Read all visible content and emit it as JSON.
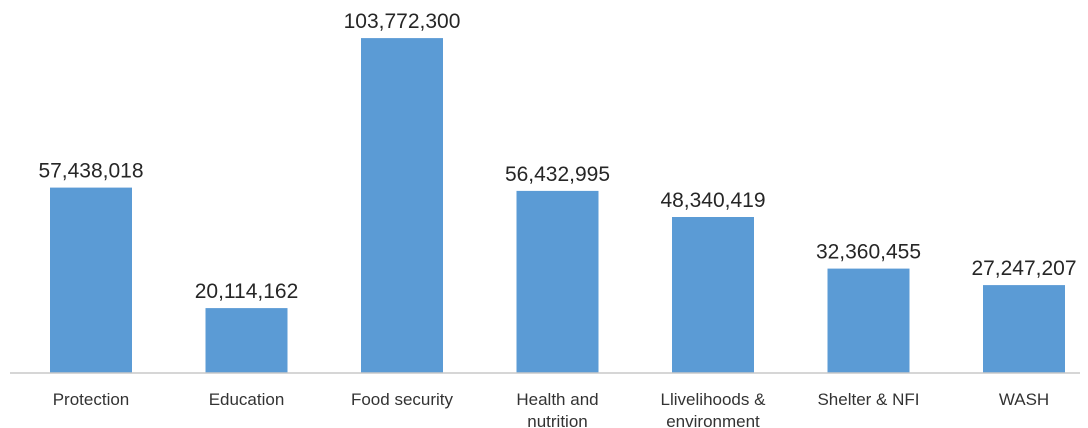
{
  "chart_data": {
    "type": "bar",
    "categories": [
      [
        "Protection"
      ],
      [
        "Education"
      ],
      [
        "Food security"
      ],
      [
        "Health and",
        "nutrition"
      ],
      [
        "Llivelihoods &",
        "environment"
      ],
      [
        "Shelter & NFI"
      ],
      [
        "WASH"
      ]
    ],
    "values": [
      57438018,
      20114162,
      103772300,
      56432995,
      48340419,
      32360455,
      27247207
    ],
    "data_labels": [
      "57,438,018",
      "20,114,162",
      "103,772,300",
      "56,432,995",
      "48,340,419",
      "32,360,455",
      "27,247,207"
    ],
    "ylim": [
      0,
      110000000
    ],
    "grid": false,
    "legend": "none",
    "colors": {
      "bar": "#5b9bd5",
      "axis": "#c8c8c8",
      "text": "#262626"
    }
  }
}
